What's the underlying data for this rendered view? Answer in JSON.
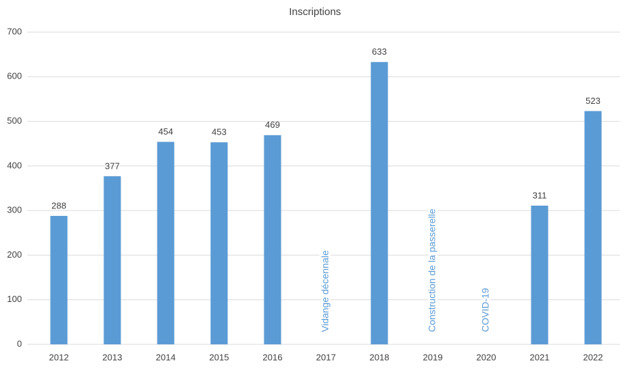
{
  "chart_data": {
    "type": "bar",
    "title": "Inscriptions",
    "categories": [
      "2012",
      "2013",
      "2014",
      "2015",
      "2016",
      "2017",
      "2018",
      "2019",
      "2020",
      "2021",
      "2022"
    ],
    "values": [
      288,
      377,
      454,
      453,
      469,
      null,
      633,
      null,
      null,
      311,
      523
    ],
    "color": "#5b9bd5",
    "ylim": [
      0,
      700
    ],
    "yticks": [
      0,
      100,
      200,
      300,
      400,
      500,
      600,
      700
    ],
    "grid": true,
    "annotations": [
      {
        "text": "Vidange décennale",
        "x": "2017"
      },
      {
        "text": "Construction de la passerelle",
        "x": "2019"
      },
      {
        "text": "COVID-19",
        "x": "2020"
      }
    ]
  }
}
